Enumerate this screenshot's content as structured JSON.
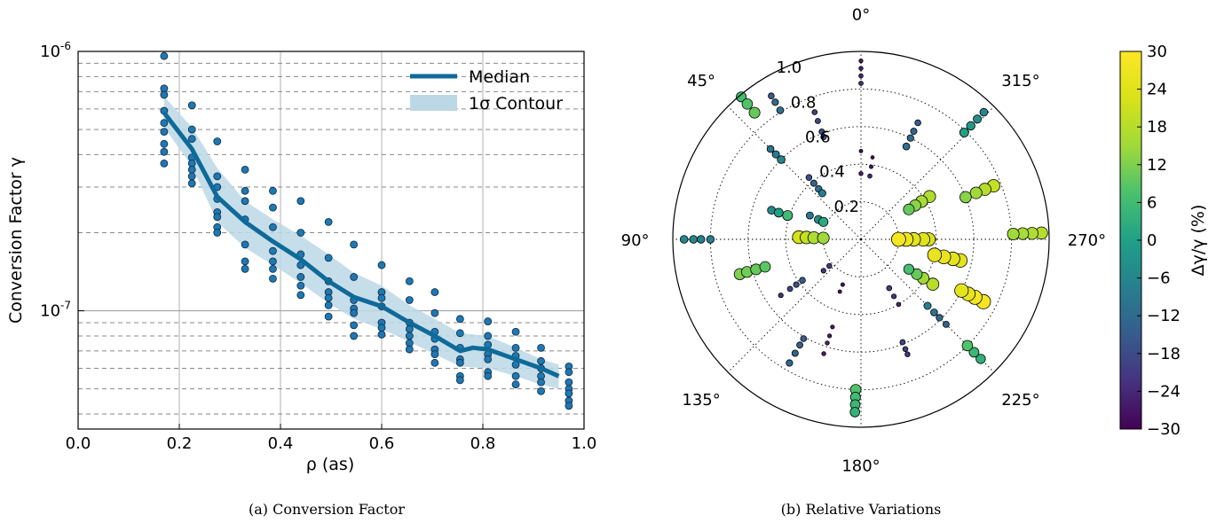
{
  "chart_data": [
    {
      "type": "scatter",
      "caption": "(a) Conversion Factor",
      "xlabel": "ρ (as)",
      "ylabel": "Conversion Factor γ",
      "xlim": [
        0.0,
        1.0
      ],
      "ylim": [
        3.5e-08,
        1e-06
      ],
      "yscale": "log",
      "xticks": [
        "0.0",
        "0.2",
        "0.4",
        "0.6",
        "0.8",
        "1.0"
      ],
      "yticks": [
        {
          "base": "10",
          "exp": "-6",
          "value": 1e-06
        },
        {
          "base": "10",
          "exp": "-7",
          "value": 1e-07
        }
      ],
      "grid": true,
      "legend": {
        "position": "top-right",
        "entries": [
          "Median",
          "1σ Contour"
        ]
      },
      "colors": {
        "median": "#0e6a99",
        "band": "#bcd8e6",
        "points": "#1f77b4"
      },
      "median": {
        "x": [
          0.17,
          0.225,
          0.275,
          0.33,
          0.385,
          0.44,
          0.495,
          0.545,
          0.6,
          0.655,
          0.705,
          0.755,
          0.78,
          0.81,
          0.865,
          0.915,
          0.95
        ],
        "y": [
          5.8e-07,
          4.2e-07,
          2.75e-07,
          2.2e-07,
          1.85e-07,
          1.58e-07,
          1.3e-07,
          1.13e-07,
          1.04e-07,
          9e-08,
          8e-08,
          7e-08,
          7.2e-08,
          7.1e-08,
          6.5e-08,
          6e-08,
          5.6e-08
        ]
      },
      "band": {
        "x": [
          0.17,
          0.225,
          0.275,
          0.33,
          0.385,
          0.44,
          0.495,
          0.545,
          0.6,
          0.655,
          0.705,
          0.755,
          0.81,
          0.865,
          0.915,
          0.95
        ],
        "upper": [
          6.7e-07,
          5.1e-07,
          3.55e-07,
          2.65e-07,
          2.25e-07,
          1.95e-07,
          1.65e-07,
          1.4e-07,
          1.25e-07,
          1.05e-07,
          9.3e-08,
          8.2e-08,
          8e-08,
          7.2e-08,
          6.5e-08,
          6.2e-08
        ],
        "lower": [
          5.1e-07,
          3.6e-07,
          2.2e-07,
          1.75e-07,
          1.5e-07,
          1.28e-07,
          1.07e-07,
          9.3e-08,
          8.5e-08,
          7.6e-08,
          6.8e-08,
          6.1e-08,
          6e-08,
          5.6e-08,
          5.2e-08,
          5e-08
        ]
      },
      "points": [
        {
          "x": 0.17,
          "y": [
            9.6e-07,
            7.2e-07,
            6.8e-07,
            5.9e-07,
            5.3e-07,
            4.9e-07,
            4.4e-07,
            4.1e-07,
            3.7e-07
          ]
        },
        {
          "x": 0.225,
          "y": [
            6.2e-07,
            5e-07,
            4.6e-07,
            3.9e-07,
            3.7e-07,
            3.5e-07,
            3.3e-07,
            3.1e-07
          ]
        },
        {
          "x": 0.275,
          "y": [
            4.5e-07,
            3.3e-07,
            3e-07,
            2.7e-07,
            2.4e-07,
            2.3e-07,
            2.1e-07,
            2e-07
          ]
        },
        {
          "x": 0.33,
          "y": [
            3.5e-07,
            2.9e-07,
            2.65e-07,
            2.25e-07,
            1.8e-07,
            1.55e-07,
            1.45e-07
          ]
        },
        {
          "x": 0.385,
          "y": [
            2.9e-07,
            2.5e-07,
            2.1e-07,
            1.7e-07,
            1.55e-07,
            1.45e-07,
            1.33e-07
          ]
        },
        {
          "x": 0.44,
          "y": [
            2.65e-07,
            2e-07,
            1.65e-07,
            1.5e-07,
            1.35e-07,
            1.25e-07,
            1.15e-07
          ]
        },
        {
          "x": 0.495,
          "y": [
            2.2e-07,
            1.6e-07,
            1.3e-07,
            1.18e-07,
            1.12e-07,
            1.05e-07,
            9.5e-08
          ]
        },
        {
          "x": 0.545,
          "y": [
            1.8e-07,
            1.35e-07,
            1.1e-07,
            1.02e-07,
            9.8e-08,
            8.8e-08,
            8e-08
          ]
        },
        {
          "x": 0.6,
          "y": [
            1.5e-07,
            1.18e-07,
            1.12e-07,
            1.04e-07,
            9e-08,
            8.6e-08,
            8.1e-08
          ]
        },
        {
          "x": 0.655,
          "y": [
            1.3e-07,
            1.1e-07,
            9e-08,
            8.5e-08,
            8e-08,
            7.5e-08,
            7.1e-08
          ]
        },
        {
          "x": 0.705,
          "y": [
            1.18e-07,
            9.8e-08,
            8.3e-08,
            7.8e-08,
            7.1e-08,
            6.8e-08,
            6.3e-08
          ]
        },
        {
          "x": 0.755,
          "y": [
            9.3e-08,
            8.2e-08,
            7.2e-08,
            6.5e-08,
            6.3e-08,
            5.6e-08,
            5.4e-08
          ]
        },
        {
          "x": 0.81,
          "y": [
            9.1e-08,
            8e-08,
            7.4e-08,
            6.8e-08,
            6.5e-08,
            5.8e-08,
            5.6e-08
          ]
        },
        {
          "x": 0.865,
          "y": [
            8.3e-08,
            7.2e-08,
            6.7e-08,
            6.2e-08,
            5.6e-08,
            5.2e-08
          ]
        },
        {
          "x": 0.915,
          "y": [
            7.2e-08,
            6.4e-08,
            6e-08,
            5.6e-08,
            5.3e-08,
            4.9e-08
          ]
        },
        {
          "x": 0.97,
          "y": [
            6.1e-08,
            5.8e-08,
            5.3e-08,
            5e-08,
            4.8e-08,
            4.5e-08,
            4.3e-08
          ]
        }
      ]
    },
    {
      "type": "scatter",
      "caption": "(b) Relative Variations",
      "projection": "polar",
      "theta_zero": "top",
      "theta_direction": "counterclockwise",
      "r_max": 1.0,
      "angle_labels": [
        "0°",
        "45°",
        "90°",
        "135°",
        "180°",
        "225°",
        "270°",
        "315°"
      ],
      "r_labels": [
        "1.0",
        "0.8",
        "0.6",
        "0.4",
        "0.2"
      ],
      "r_grid": [
        0.2,
        0.4,
        0.6,
        0.8,
        1.0
      ],
      "colorbar": {
        "label": "Δγ/γ (%)",
        "min": -30,
        "max": 30,
        "ticks": [
          "30",
          "24",
          "18",
          "12",
          "6",
          "0",
          "−6",
          "−12",
          "−18",
          "−24",
          "−30"
        ],
        "colormap": "viridis"
      },
      "groups": [
        {
          "theta": 0,
          "r": [
            0.47,
            0.35
          ],
          "pct": [
            -28,
            -25
          ]
        },
        {
          "theta": 0,
          "r": [
            0.95,
            0.91,
            0.87,
            0.83
          ],
          "pct": [
            -26,
            -25,
            -24,
            -23
          ]
        },
        {
          "theta": 20,
          "r": [
            0.72,
            0.67,
            0.61,
            0.58
          ],
          "pct": [
            -20,
            -19,
            -18,
            -17
          ]
        },
        {
          "theta": 40,
          "r": [
            0.43,
            0.39,
            0.35,
            0.32
          ],
          "pct": [
            -16,
            -13,
            -11,
            -8
          ]
        },
        {
          "theta": 32,
          "r": [
            0.9,
            0.86,
            0.81
          ],
          "pct": [
            -15,
            -12,
            -10
          ]
        },
        {
          "theta": 45,
          "r": [
            0.68,
            0.64,
            0.6
          ],
          "pct": [
            -10,
            -8,
            -6
          ]
        },
        {
          "theta": 40,
          "r": [
            0.99,
            0.94,
            0.88
          ],
          "pct": [
            6,
            8,
            10
          ]
        },
        {
          "theta": 65,
          "r": [
            0.3,
            0.25,
            0.22
          ],
          "pct": [
            -9,
            -4,
            2
          ]
        },
        {
          "theta": 72,
          "r": [
            0.5,
            0.46,
            0.41
          ],
          "pct": [
            -5,
            0,
            6
          ]
        },
        {
          "theta": 88,
          "r": [
            0.33,
            0.29,
            0.25,
            0.2
          ],
          "pct": [
            22,
            20,
            17,
            15
          ]
        },
        {
          "theta": 90,
          "r": [
            0.94,
            0.89,
            0.85,
            0.8
          ],
          "pct": [
            -6,
            -6,
            -7,
            -7
          ]
        },
        {
          "theta": 106,
          "r": [
            0.67,
            0.63,
            0.58,
            0.53
          ],
          "pct": [
            12,
            11,
            10,
            9
          ]
        },
        {
          "theta": 130,
          "r": [
            0.26,
            0.22
          ],
          "pct": [
            -22,
            -21
          ]
        },
        {
          "theta": 125,
          "r": [
            0.52,
            0.46,
            0.42,
            0.38
          ],
          "pct": [
            -22,
            -19,
            -17,
            -15
          ]
        },
        {
          "theta": 150,
          "r": [
            0.76,
            0.7,
            0.65,
            0.61
          ],
          "pct": [
            -12,
            -13,
            -14,
            -15
          ]
        },
        {
          "theta": 162,
          "r": [
            0.64,
            0.58,
            0.54,
            0.49
          ],
          "pct": [
            -25,
            -25,
            -26,
            -26
          ]
        },
        {
          "theta": 158,
          "r": [
            0.3,
            0.26
          ],
          "pct": [
            -28,
            -27
          ]
        },
        {
          "theta": 178,
          "r": [
            0.8,
            0.84,
            0.88,
            0.92
          ],
          "pct": [
            8,
            6,
            5,
            4
          ]
        },
        {
          "theta": 202,
          "r": [
            0.66,
            0.63,
            0.59
          ],
          "pct": [
            -21,
            -20,
            -19
          ]
        },
        {
          "theta": 225,
          "r": [
            0.64,
            0.59,
            0.55,
            0.5
          ],
          "pct": [
            -14,
            -12,
            -10,
            -8
          ]
        },
        {
          "theta": 225,
          "r": [
            0.9,
            0.85,
            0.8
          ],
          "pct": [
            3,
            5,
            8
          ]
        },
        {
          "theta": 210,
          "r": [
            0.3,
            0.35,
            0.4
          ],
          "pct": [
            -20,
            -22,
            -24
          ]
        },
        {
          "theta": 238,
          "r": [
            0.45,
            0.39,
            0.35,
            0.3
          ],
          "pct": [
            18,
            15,
            10,
            7
          ]
        },
        {
          "theta": 243,
          "r": [
            0.73,
            0.68,
            0.64,
            0.6
          ],
          "pct": [
            29,
            28,
            26,
            25
          ]
        },
        {
          "theta": 258,
          "r": [
            0.54,
            0.5,
            0.45,
            0.4
          ],
          "pct": [
            25,
            25,
            26,
            26
          ]
        },
        {
          "theta": 270,
          "r": [
            0.36,
            0.33,
            0.28,
            0.24,
            0.2
          ],
          "pct": [
            23,
            24,
            25,
            27,
            28
          ]
        },
        {
          "theta": 272,
          "r": [
            0.96,
            0.91,
            0.86,
            0.81
          ],
          "pct": [
            18,
            17,
            16,
            15
          ]
        },
        {
          "theta": 292,
          "r": [
            0.76,
            0.71,
            0.66,
            0.6
          ],
          "pct": [
            20,
            18,
            15,
            13
          ]
        },
        {
          "theta": 302,
          "r": [
            0.43,
            0.38,
            0.34,
            0.3
          ],
          "pct": [
            17,
            16,
            13,
            10
          ]
        },
        {
          "theta": 316,
          "r": [
            0.94,
            0.89,
            0.84,
            0.79
          ],
          "pct": [
            -6,
            -4,
            -2,
            0
          ]
        },
        {
          "theta": 334,
          "r": [
            0.69,
            0.64,
            0.6,
            0.55
          ],
          "pct": [
            -15,
            -13,
            -12,
            -10
          ]
        },
        {
          "theta": 352,
          "r": [
            0.44,
            0.39,
            0.34
          ],
          "pct": [
            -29,
            -27,
            -24
          ]
        }
      ]
    }
  ]
}
